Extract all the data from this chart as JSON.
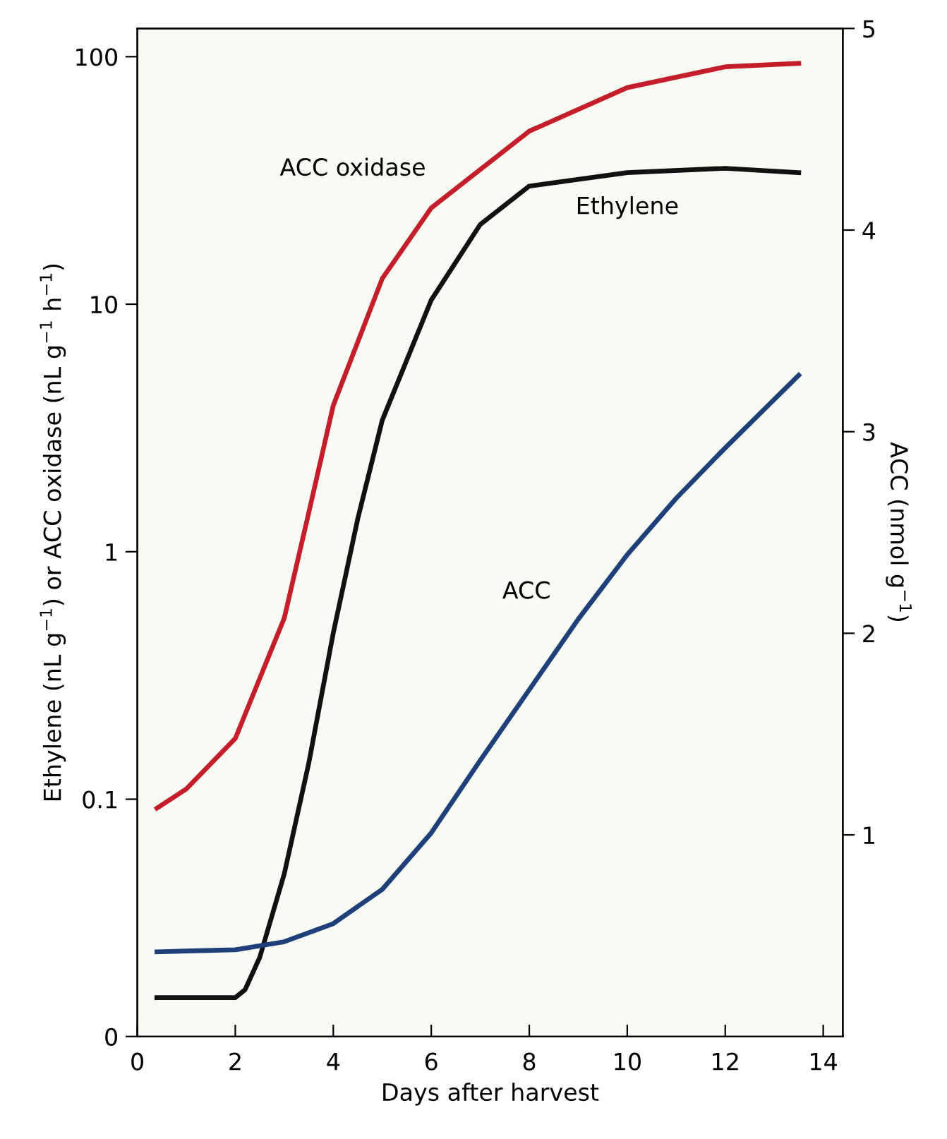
{
  "chart_data": {
    "type": "line",
    "xlabel": "Days after harvest",
    "ylabel": "Ethylene (nL g$^{−1}$) or ACC oxidase (nL g$^{−1}$ h$^{−1}$)",
    "y2label": "ACC (nmol g$^{−1}$)",
    "log": "y",
    "grid": false,
    "legend": false,
    "marker": "none",
    "line_style": "solid",
    "xlim": [
      0,
      14.4
    ],
    "xticks": [
      0,
      2,
      4,
      6,
      8,
      10,
      12,
      14
    ],
    "ylim": [
      0.011,
      130
    ],
    "yticks": [
      {
        "value": 0.011,
        "label": "0"
      },
      {
        "value": 0.1,
        "label": "0.1"
      },
      1,
      10,
      100
    ],
    "y2lim": [
      0,
      5
    ],
    "y2ticks": [
      1,
      2,
      3,
      4,
      5
    ],
    "series": [
      {
        "name": "ACC oxidase",
        "color": "#c41e2a",
        "x": [
          0.4,
          1,
          2,
          3,
          3.5,
          4,
          5,
          6,
          8,
          10,
          12,
          13.5
        ],
        "values": [
          0.092,
          0.11,
          0.176,
          0.54,
          1.44,
          3.9,
          12.7,
          24.5,
          50,
          75,
          91,
          94
        ]
      },
      {
        "name": "Ethylene",
        "color": "#111111",
        "x": [
          0.4,
          2,
          2.2,
          2.5,
          3,
          3.5,
          4,
          4.5,
          5,
          6,
          7,
          8,
          10,
          12,
          13.5
        ],
        "values": [
          0.0158,
          0.0158,
          0.017,
          0.023,
          0.05,
          0.14,
          0.47,
          1.36,
          3.4,
          10.4,
          21,
          30,
          34,
          35.4,
          34
        ]
      },
      {
        "name": "ACC",
        "color": "#1f3f7a",
        "axis": "y2",
        "x": [
          0.4,
          2,
          3,
          4,
          5,
          6,
          7,
          8,
          9,
          10,
          11,
          12,
          13.5
        ],
        "values": [
          0.42,
          0.43,
          0.47,
          0.56,
          0.73,
          1.01,
          1.37,
          1.72,
          2.07,
          2.39,
          2.67,
          2.92,
          3.28
        ]
      }
    ]
  }
}
